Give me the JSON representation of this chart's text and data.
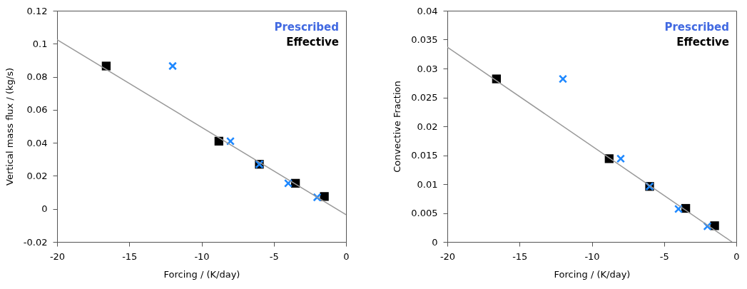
{
  "chart_data": [
    {
      "type": "scatter",
      "xlabel": "Forcing / (K/day)",
      "ylabel": "Vertical mass flux / (kg/s)",
      "xlim": [
        -20,
        0
      ],
      "ylim": [
        -0.02,
        0.12
      ],
      "xticks": [
        -20,
        -15,
        -10,
        -5,
        0
      ],
      "yticks": [
        -0.02,
        0,
        0.02,
        0.04,
        0.06,
        0.08,
        0.1,
        0.12
      ],
      "grid": false,
      "legend": "top right",
      "series": [
        {
          "type": "line",
          "color": "#999999",
          "x": [
            -20,
            0
          ],
          "values": [
            0.1024,
            -0.0035
          ]
        },
        {
          "name": "Prescribed",
          "color": "#1e88ff",
          "marker": "cross",
          "x": [
            -12,
            -8,
            -6,
            -4,
            -2
          ],
          "values": [
            0.0865,
            0.041,
            0.027,
            0.0155,
            0.007
          ]
        },
        {
          "name": "Effective",
          "color": "#000000",
          "marker": "square",
          "x": [
            -16.6,
            -8.8,
            -6,
            -3.5,
            -1.5
          ],
          "values": [
            0.0865,
            0.041,
            0.027,
            0.0155,
            0.0075
          ]
        }
      ]
    },
    {
      "type": "scatter",
      "xlabel": "Forcing / (K/day)",
      "ylabel": "Convective Fraction",
      "xlim": [
        -20,
        0
      ],
      "ylim": [
        0,
        0.04
      ],
      "xticks": [
        -20,
        -15,
        -10,
        -5,
        0
      ],
      "yticks": [
        0,
        0.005,
        0.01,
        0.015,
        0.02,
        0.025,
        0.03,
        0.035,
        0.04
      ],
      "grid": false,
      "legend": "top right",
      "series": [
        {
          "type": "line",
          "color": "#999999",
          "x": [
            -20,
            -0.3
          ],
          "values": [
            0.0337,
            0
          ]
        },
        {
          "name": "Prescribed",
          "color": "#1e88ff",
          "marker": "cross",
          "x": [
            -12,
            -8,
            -6,
            -4,
            -2
          ],
          "values": [
            0.0282,
            0.0144,
            0.0096,
            0.0057,
            0.0027
          ]
        },
        {
          "name": "Effective",
          "color": "#000000",
          "marker": "square",
          "x": [
            -16.6,
            -8.8,
            -6,
            -3.5,
            -1.5
          ],
          "values": [
            0.0282,
            0.0144,
            0.0096,
            0.0058,
            0.0028
          ]
        }
      ]
    }
  ]
}
